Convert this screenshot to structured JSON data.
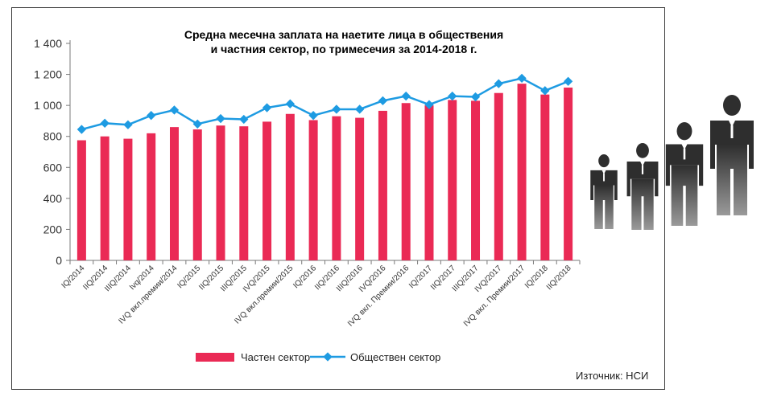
{
  "chart_data": {
    "type": "bar",
    "title": "Средна месечна заплата на наетите лица в обществения и частния сектор, по тримесечия за 2014-2018 г.",
    "title_lines": [
      "Средна месечна заплата на наетите лица в обществения",
      "и частния сектор, по тримесечия за 2014-2018 г."
    ],
    "categories": [
      "IQ/2014",
      "IIQ/2014",
      "IIIQ/2014",
      "Ivq/2014",
      "IVQ вкл.премии/2014",
      "IQ/2015",
      "IIQ/2015",
      "IIIQ/2015",
      "IVQ/2015",
      "IVQ вкл.премии/2015",
      "IQ/2016",
      "IIQ/2016",
      "IIIQ/2016",
      "IVQ/2016",
      "IVQ вкл. Премии/2016",
      "IQ/2017",
      "IIQ/2017",
      "IIIQ/2017",
      "IVQ/2017",
      "IVQ вкл. Премии/2017",
      "IQ/2018",
      "IIQ/2018"
    ],
    "ylim": [
      0,
      1400
    ],
    "yticks": [
      0,
      200,
      400,
      600,
      800,
      1000,
      1200,
      1400
    ],
    "ytick_labels": [
      "0",
      "200",
      "400",
      "600",
      "800",
      "1 000",
      "1 200",
      "1 400"
    ],
    "series": [
      {
        "name": "Частен сектор",
        "type": "bar",
        "color": "#ea2a55",
        "values": [
          775,
          800,
          785,
          820,
          860,
          845,
          870,
          865,
          895,
          945,
          905,
          930,
          920,
          965,
          1015,
          1000,
          1035,
          1030,
          1080,
          1140,
          1070,
          1115
        ]
      },
      {
        "name": "Обществен сектор",
        "type": "line",
        "color": "#1e9be2",
        "values": [
          845,
          885,
          875,
          935,
          970,
          880,
          915,
          910,
          985,
          1010,
          935,
          975,
          975,
          1030,
          1060,
          1005,
          1060,
          1055,
          1140,
          1175,
          1095,
          1155
        ]
      }
    ],
    "legend_position": "bottom",
    "grid": false,
    "source": "Източник: НСИ"
  },
  "colors": {
    "bar": "#ea2a55",
    "line": "#1e9be2",
    "silhouette": "#2e2e2e"
  },
  "decoration": {
    "icon": "businessmen-silhouettes-icon"
  }
}
